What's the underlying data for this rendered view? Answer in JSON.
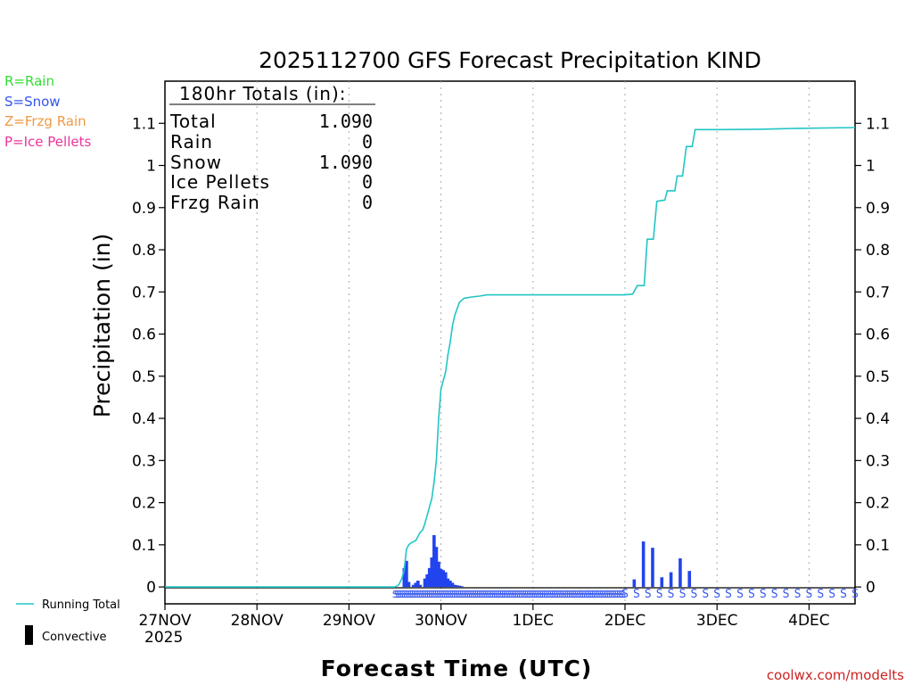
{
  "chart_data": {
    "type": "bar",
    "title": "2025112700 GFS Forecast Precipitation KIND",
    "xlabel": "Forecast Time (UTC)",
    "ylabel": "Precipitation (in)",
    "ylim": [
      -0.04,
      1.2
    ],
    "xlim_hours": [
      0,
      180
    ],
    "y_ticks": [
      0,
      0.1,
      0.2,
      0.3,
      0.4,
      0.5,
      0.6,
      0.7,
      0.8,
      0.9,
      1,
      1.1
    ],
    "y_tick_labels": [
      "0",
      "0.1",
      "0.2",
      "0.3",
      "0.4",
      "0.5",
      "0.6",
      "0.7",
      "0.8",
      "0.9",
      "1",
      "1.1"
    ],
    "x_ticks": [
      {
        "hour": 0,
        "label": "27NOV"
      },
      {
        "hour": 24,
        "label": "28NOV"
      },
      {
        "hour": 48,
        "label": "29NOV"
      },
      {
        "hour": 72,
        "label": "30NOV"
      },
      {
        "hour": 96,
        "label": "1DEC"
      },
      {
        "hour": 120,
        "label": "2DEC"
      },
      {
        "hour": 144,
        "label": "3DEC"
      },
      {
        "hour": 168,
        "label": "4DEC"
      }
    ],
    "year_label": "2025",
    "legend_types": [
      {
        "code": "R=Rain",
        "color": "#33dd33"
      },
      {
        "code": "S=Snow",
        "color": "#3355ee"
      },
      {
        "code": "Z=Frzg Rain",
        "color": "#ee9944"
      },
      {
        "code": "P=Ice Pellets",
        "color": "#ee3399"
      }
    ],
    "legend_series": {
      "running_total": "Running Total",
      "convective": "Convective"
    },
    "totals_box": {
      "header": "180hr Totals (in):",
      "rows": [
        {
          "label": "Total",
          "value": "1.090"
        },
        {
          "label": "Rain",
          "value": "0"
        },
        {
          "label": "Snow",
          "value": "1.090"
        },
        {
          "label": "Ice Pellets",
          "value": "0"
        },
        {
          "label": "Frzg Rain",
          "value": "0"
        }
      ]
    },
    "series": [
      {
        "name": "Running Total",
        "type": "line",
        "color": "#22c5c5",
        "points": [
          [
            0,
            0
          ],
          [
            60.0,
            0
          ],
          [
            61.0,
            0.005
          ],
          [
            61.8,
            0.02
          ],
          [
            62.4,
            0.04
          ],
          [
            63.0,
            0.09
          ],
          [
            63.6,
            0.1
          ],
          [
            64.2,
            0.105
          ],
          [
            65.4,
            0.11
          ],
          [
            66.0,
            0.12
          ],
          [
            66.6,
            0.13
          ],
          [
            67.2,
            0.135
          ],
          [
            67.8,
            0.15
          ],
          [
            68.4,
            0.17
          ],
          [
            69.0,
            0.19
          ],
          [
            69.6,
            0.21
          ],
          [
            70.2,
            0.25
          ],
          [
            70.8,
            0.3
          ],
          [
            71.4,
            0.4
          ],
          [
            72.0,
            0.47
          ],
          [
            72.6,
            0.49
          ],
          [
            73.2,
            0.51
          ],
          [
            73.8,
            0.55
          ],
          [
            74.4,
            0.58
          ],
          [
            75.0,
            0.62
          ],
          [
            75.6,
            0.645
          ],
          [
            76.2,
            0.66
          ],
          [
            76.8,
            0.675
          ],
          [
            78.0,
            0.685
          ],
          [
            80.0,
            0.688
          ],
          [
            82.0,
            0.69
          ],
          [
            84.0,
            0.693
          ],
          [
            90.0,
            0.693
          ],
          [
            100.0,
            0.693
          ],
          [
            110.0,
            0.693
          ],
          [
            118.5,
            0.693
          ],
          [
            120.0,
            0.693
          ],
          [
            122.0,
            0.695
          ],
          [
            123.2,
            0.715
          ],
          [
            125.0,
            0.715
          ],
          [
            125.8,
            0.825
          ],
          [
            127.4,
            0.825
          ],
          [
            128.3,
            0.915
          ],
          [
            130.4,
            0.918
          ],
          [
            131.0,
            0.94
          ],
          [
            133.0,
            0.94
          ],
          [
            133.6,
            0.975
          ],
          [
            135.0,
            0.975
          ],
          [
            136.0,
            1.045
          ],
          [
            137.5,
            1.045
          ],
          [
            138.3,
            1.085
          ],
          [
            145.0,
            1.085
          ],
          [
            155.0,
            1.086
          ],
          [
            160.0,
            1.087
          ],
          [
            165.0,
            1.088
          ],
          [
            180.0,
            1.09
          ]
        ]
      },
      {
        "name": "Snow",
        "type": "bar",
        "color": "#2244ee",
        "bars": [
          [
            62.4,
            0.045
          ],
          [
            63.0,
            0.062
          ],
          [
            63.6,
            0.012
          ],
          [
            64.8,
            0.005
          ],
          [
            65.4,
            0.01
          ],
          [
            66.0,
            0.015
          ],
          [
            66.6,
            0.005
          ],
          [
            67.8,
            0.02
          ],
          [
            68.4,
            0.03
          ],
          [
            69.0,
            0.045
          ],
          [
            69.6,
            0.07
          ],
          [
            70.2,
            0.123
          ],
          [
            70.8,
            0.095
          ],
          [
            71.4,
            0.06
          ],
          [
            72.0,
            0.043
          ],
          [
            72.6,
            0.04
          ],
          [
            73.2,
            0.035
          ],
          [
            73.8,
            0.02
          ],
          [
            74.4,
            0.015
          ],
          [
            75.0,
            0.01
          ],
          [
            75.6,
            0.005
          ],
          [
            76.2,
            0.004
          ],
          [
            76.8,
            0.003
          ],
          [
            77.4,
            0.002
          ],
          [
            122.4,
            0.018
          ],
          [
            124.8,
            0.108
          ],
          [
            127.2,
            0.093
          ],
          [
            129.6,
            0.023
          ],
          [
            132.0,
            0.035
          ],
          [
            134.4,
            0.068
          ],
          [
            136.8,
            0.038
          ]
        ]
      }
    ],
    "precip_type_marks": {
      "marker": "S",
      "dense_start_hour": 60.0,
      "dense_end_hour": 120.0,
      "dense_step_hours": 0.5,
      "sparse_start_hour": 120.0,
      "sparse_end_hour": 180.0,
      "sparse_step_hours": 3
    }
  },
  "credit": "coolwx.com/modelts"
}
